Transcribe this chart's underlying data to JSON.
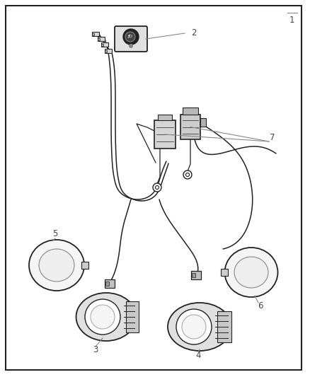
{
  "bg_color": "#ffffff",
  "border_color": "#222222",
  "line_color": "#222222",
  "label_color": "#444444",
  "anno_color": "#888888",
  "figsize": [
    4.38,
    5.33
  ],
  "dpi": 100,
  "lw_main": 1.4,
  "lw_thin": 0.9,
  "lw_wire": 1.1,
  "label_fs": 8.5
}
